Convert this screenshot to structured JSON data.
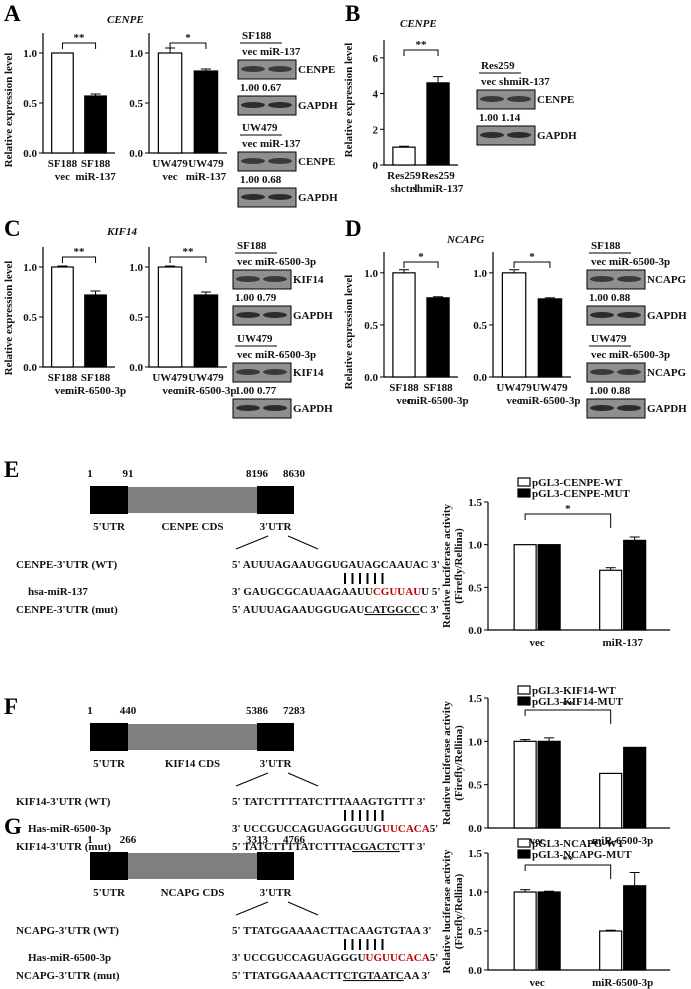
{
  "A": {
    "letter": "A",
    "gene": "CENPE",
    "ylabel": "Relative expression level",
    "chart1": {
      "ylim": [
        0,
        1.2
      ],
      "yticks": [
        "0.0",
        "0.5",
        "1.0"
      ],
      "sig": "**",
      "bars": [
        {
          "l1": "SF188",
          "l2": "vec",
          "v": 1.0,
          "e": 0,
          "fill": "white"
        },
        {
          "l1": "SF188",
          "l2": "miR-137",
          "v": 0.57,
          "e": 0.02,
          "fill": "black"
        }
      ]
    },
    "chart2": {
      "ylim": [
        0,
        1.2
      ],
      "yticks": [
        "0.0",
        "0.5",
        "1.0"
      ],
      "sig": "*",
      "bars": [
        {
          "l1": "UW479",
          "l2": "vec",
          "v": 1.0,
          "e": 0.05,
          "fill": "white"
        },
        {
          "l1": "UW479",
          "l2": "miR-137",
          "v": 0.82,
          "e": 0.02,
          "fill": "black"
        }
      ]
    },
    "wb1": {
      "cell": "SF188",
      "lanes": "vec miR-137",
      "protein": "CENPE",
      "ctrl": "GAPDH",
      "quant": "1.00  0.67"
    },
    "wb2": {
      "cell": "UW479",
      "lanes": "vec miR-137",
      "protein": "CENPE",
      "ctrl": "GAPDH",
      "quant": "1.00  0.68"
    }
  },
  "B": {
    "letter": "B",
    "gene": "CENPE",
    "ylabel": "Relative expression level",
    "chart": {
      "ylim": [
        0,
        7
      ],
      "yticks": [
        "0",
        "2",
        "4",
        "6"
      ],
      "sig": "**",
      "bars": [
        {
          "l1": "Res259",
          "l2": "shctrl",
          "v": 1.0,
          "e": 0.05,
          "fill": "white"
        },
        {
          "l1": "Res259",
          "l2": "shmiR-137",
          "v": 4.6,
          "e": 0.35,
          "fill": "black"
        }
      ]
    },
    "wb": {
      "cell": "Res259",
      "lanes": "vec shmiR-137",
      "protein": "CENPE",
      "ctrl": "GAPDH",
      "quant": "1.00  1.14"
    }
  },
  "C": {
    "letter": "C",
    "gene": "KIF14",
    "ylabel": "Relative expression level",
    "chart1": {
      "ylim": [
        0,
        1.2
      ],
      "yticks": [
        "0.0",
        "0.5",
        "1.0"
      ],
      "sig": "**",
      "bars": [
        {
          "l1": "SF188",
          "l2": "vec",
          "v": 1.0,
          "e": 0.01,
          "fill": "white"
        },
        {
          "l1": "SF188",
          "l2": "miR-6500-3p",
          "v": 0.72,
          "e": 0.04,
          "fill": "black"
        }
      ]
    },
    "chart2": {
      "ylim": [
        0,
        1.2
      ],
      "yticks": [
        "0.0",
        "0.5",
        "1.0"
      ],
      "sig": "**",
      "bars": [
        {
          "l1": "UW479",
          "l2": "vec",
          "v": 1.0,
          "e": 0.01,
          "fill": "white"
        },
        {
          "l1": "UW479",
          "l2": "miR-6500-3p",
          "v": 0.72,
          "e": 0.03,
          "fill": "black"
        }
      ]
    },
    "wb1": {
      "cell": "SF188",
      "lanes": "vec miR-6500-3p",
      "protein": "KIF14",
      "ctrl": "GAPDH",
      "quant": "1.00  0.79"
    },
    "wb2": {
      "cell": "UW479",
      "lanes": "vec miR-6500-3p",
      "protein": "KIF14",
      "ctrl": "GAPDH",
      "quant": "1.00  0.77"
    }
  },
  "D": {
    "letter": "D",
    "gene": "NCAPG",
    "ylabel": "Relative expression level",
    "chart1": {
      "ylim": [
        0,
        1.2
      ],
      "yticks": [
        "0.0",
        "0.5",
        "1.0"
      ],
      "sig": "*",
      "bars": [
        {
          "l1": "SF188",
          "l2": "vec",
          "v": 1.0,
          "e": 0.03,
          "fill": "white"
        },
        {
          "l1": "SF188",
          "l2": "miR-6500-3p",
          "v": 0.76,
          "e": 0.01,
          "fill": "black"
        }
      ]
    },
    "chart2": {
      "ylim": [
        0,
        1.2
      ],
      "yticks": [
        "0.0",
        "0.5",
        "1.0"
      ],
      "sig": "*",
      "bars": [
        {
          "l1": "UW479",
          "l2": "vec",
          "v": 1.0,
          "e": 0.03,
          "fill": "white"
        },
        {
          "l1": "UW479",
          "l2": "miR-6500-3p",
          "v": 0.75,
          "e": 0.01,
          "fill": "black"
        }
      ]
    },
    "wb1": {
      "cell": "SF188",
      "lanes": "vec miR-6500-3p",
      "protein": "NCAPG",
      "ctrl": "GAPDH",
      "quant": "1.00  0.88"
    },
    "wb2": {
      "cell": "UW479",
      "lanes": "vec miR-6500-3p",
      "protein": "NCAPG",
      "ctrl": "GAPDH",
      "quant": "1.00  0.88"
    }
  },
  "E": {
    "letter": "E",
    "positions": [
      "1",
      "91",
      "8196",
      "8630"
    ],
    "regions": [
      "5'UTR",
      "CENPE CDS",
      "3'UTR"
    ],
    "wt_label": "CENPE-3'UTR (WT)",
    "wt_pre": "5' AUUUAGAAUGGUGAUA",
    "wt_site": "GCAAUA",
    "wt_post": "C  3'",
    "mir_label": "hsa-miR-137",
    "mir_pre": "3' GAUGCGCAUAAGAAUU",
    "mir_site": "CGUUAU",
    "mir_post": "U  5'",
    "mut_label": "CENPE-3'UTR (mut)",
    "mut_pre": "5' AUUUAGAAUGGUGAU",
    "mut_site": "CATGGCC",
    "mut_post": "C  3'",
    "legend": [
      "pGL3-CENPE-WT",
      "pGL3-CENPE-MUT"
    ],
    "ylabel1": "Relative luciferase activity",
    "ylabel2": "(Firefly/Rellina)",
    "chart": {
      "ylim": [
        0,
        1.5
      ],
      "yticks": [
        "0.0",
        "0.5",
        "1.0",
        "1.5"
      ],
      "sig": "*",
      "groups": [
        "vec",
        "miR-137"
      ],
      "series": [
        {
          "name": "pGL3-CENPE-WT",
          "fill": "white",
          "values": [
            1.0,
            0.7
          ],
          "err": [
            0,
            0.03
          ]
        },
        {
          "name": "pGL3-CENPE-MUT",
          "fill": "black",
          "values": [
            1.0,
            1.05
          ],
          "err": [
            0,
            0.04
          ]
        }
      ]
    }
  },
  "F": {
    "letter": "F",
    "positions": [
      "1",
      "440",
      "5386",
      "7283"
    ],
    "regions": [
      "5'UTR",
      "KIF14 CDS",
      "3'UTR"
    ],
    "wt_label": "KIF14-3'UTR (WT)",
    "wt_pre": "5' TATCTTTTATCTTTA",
    "wt_site": "AAGTGT",
    "wt_post": "TT  3'",
    "mir_label": "Has-miR-6500-3p",
    "mir_pre": "3' UCCGUCCAGUAGGGUUG",
    "mir_site": "UUCACA",
    "mir_post": "5'",
    "mut_label": "KIF14-3'UTR (mut)",
    "mut_pre": "5' TATCTTTTATCTTTA",
    "mut_site": "CGACTC",
    "mut_post": "TT  3'",
    "legend": [
      "pGL3-KIF14-WT",
      "pGL3-KIF14-MUT"
    ],
    "ylabel1": "Relative luciferase activity",
    "ylabel2": "(Firefly/Rellina)",
    "chart": {
      "ylim": [
        0,
        1.5
      ],
      "yticks": [
        "0.0",
        "0.5",
        "1.0",
        "1.5"
      ],
      "sig": "**",
      "groups": [
        "vec",
        "miR-6500-3p"
      ],
      "series": [
        {
          "name": "pGL3-KIF14-WT",
          "fill": "white",
          "values": [
            1.0,
            0.63
          ],
          "err": [
            0.02,
            0
          ]
        },
        {
          "name": "pGL3-KIF14-MUT",
          "fill": "black",
          "values": [
            1.0,
            0.93
          ],
          "err": [
            0.04,
            0
          ]
        }
      ]
    }
  },
  "G": {
    "letter": "G",
    "positions": [
      "1",
      "266",
      "3313",
      "4766"
    ],
    "regions": [
      "5'UTR",
      "NCAPG CDS",
      "3'UTR"
    ],
    "wt_label": "NCAPG-3'UTR  (WT)",
    "wt_pre": "5' TTATGGAAAACTTA",
    "wt_site": "CAAGTGT",
    "wt_post": "AA  3'",
    "mir_label": "Has-miR-6500-3p",
    "mir_pre": "3' UCCGUCCAGUAGGGU",
    "mir_site": "UGUUCACA",
    "mir_post": "5'",
    "mut_label": "NCAPG-3'UTR (mut)",
    "mut_pre": "5' TTATGGAAAACTT",
    "mut_site": "CTGTAATC",
    "mut_post": "AA  3'",
    "legend": [
      "pGL3-NCAPG-WT",
      "pGL3-NCAPG-MUT"
    ],
    "ylabel1": "Relative luciferase activity",
    "ylabel2": "(Firefly/Rellina)",
    "chart": {
      "ylim": [
        0,
        1.5
      ],
      "yticks": [
        "0.0",
        "0.5",
        "1.0",
        "1.5"
      ],
      "sig": "**",
      "groups": [
        "vec",
        "miR-6500-3p"
      ],
      "series": [
        {
          "name": "pGL3-NCAPG-WT",
          "fill": "white",
          "values": [
            1.0,
            0.5
          ],
          "err": [
            0.03,
            0.01
          ]
        },
        {
          "name": "pGL3-NCAPG-MUT",
          "fill": "black",
          "values": [
            1.0,
            1.08
          ],
          "err": [
            0.01,
            0.17
          ]
        }
      ]
    }
  },
  "chart_data": [
    {
      "type": "bar",
      "panel": "A-1",
      "categories": [
        "SF188 vec",
        "SF188 miR-137"
      ],
      "values": [
        1.0,
        0.57
      ],
      "ylim": [
        0,
        1.2
      ]
    },
    {
      "type": "bar",
      "panel": "A-2",
      "categories": [
        "UW479 vec",
        "UW479 miR-137"
      ],
      "values": [
        1.0,
        0.82
      ],
      "ylim": [
        0,
        1.2
      ]
    },
    {
      "type": "bar",
      "panel": "B",
      "categories": [
        "Res259 shctrl",
        "Res259 shmiR-137"
      ],
      "values": [
        1.0,
        4.6
      ],
      "ylim": [
        0,
        7
      ]
    },
    {
      "type": "bar",
      "panel": "C-1",
      "categories": [
        "SF188 vec",
        "SF188 miR-6500-3p"
      ],
      "values": [
        1.0,
        0.72
      ],
      "ylim": [
        0,
        1.2
      ]
    },
    {
      "type": "bar",
      "panel": "C-2",
      "categories": [
        "UW479 vec",
        "UW479 miR-6500-3p"
      ],
      "values": [
        1.0,
        0.72
      ],
      "ylim": [
        0,
        1.2
      ]
    },
    {
      "type": "bar",
      "panel": "D-1",
      "categories": [
        "SF188 vec",
        "SF188 miR-6500-3p"
      ],
      "values": [
        1.0,
        0.76
      ],
      "ylim": [
        0,
        1.2
      ]
    },
    {
      "type": "bar",
      "panel": "D-2",
      "categories": [
        "UW479 vec",
        "UW479 miR-6500-3p"
      ],
      "values": [
        1.0,
        0.75
      ],
      "ylim": [
        0,
        1.2
      ]
    },
    {
      "type": "bar",
      "panel": "E",
      "categories": [
        "vec",
        "miR-137"
      ],
      "series": [
        {
          "name": "pGL3-CENPE-WT",
          "values": [
            1.0,
            0.7
          ]
        },
        {
          "name": "pGL3-CENPE-MUT",
          "values": [
            1.0,
            1.05
          ]
        }
      ],
      "ylim": [
        0,
        1.5
      ]
    },
    {
      "type": "bar",
      "panel": "F",
      "categories": [
        "vec",
        "miR-6500-3p"
      ],
      "series": [
        {
          "name": "pGL3-KIF14-WT",
          "values": [
            1.0,
            0.63
          ]
        },
        {
          "name": "pGL3-KIF14-MUT",
          "values": [
            1.0,
            0.93
          ]
        }
      ],
      "ylim": [
        0,
        1.5
      ]
    },
    {
      "type": "bar",
      "panel": "G",
      "categories": [
        "vec",
        "miR-6500-3p"
      ],
      "series": [
        {
          "name": "pGL3-NCAPG-WT",
          "values": [
            1.0,
            0.5
          ]
        },
        {
          "name": "pGL3-NCAPG-MUT",
          "values": [
            1.0,
            1.08
          ]
        }
      ],
      "ylim": [
        0,
        1.5
      ]
    }
  ]
}
